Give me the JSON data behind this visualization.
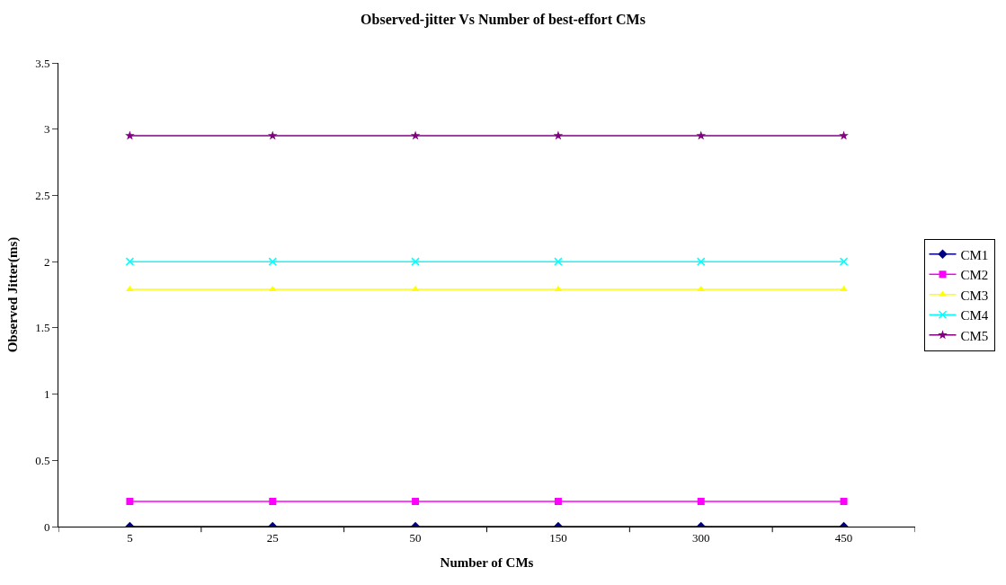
{
  "chart_data": {
    "type": "line",
    "title": "Observed-jitter Vs Number of best-effort CMs",
    "xlabel": "Number of CMs",
    "ylabel": "Observed Jitter(ms)",
    "categories": [
      "5",
      "25",
      "50",
      "150",
      "300",
      "450"
    ],
    "series": [
      {
        "name": "CM1",
        "color": "#000080",
        "marker": "diamond",
        "values": [
          0,
          0,
          0,
          0,
          0,
          0
        ]
      },
      {
        "name": "CM2",
        "color": "#ff00ff",
        "marker": "square",
        "values": [
          0.19,
          0.19,
          0.19,
          0.19,
          0.19,
          0.19
        ]
      },
      {
        "name": "CM3",
        "color": "#ffff00",
        "marker": "triangle",
        "values": [
          1.79,
          1.79,
          1.79,
          1.79,
          1.79,
          1.79
        ]
      },
      {
        "name": "CM4",
        "color": "#00ffff",
        "marker": "cross",
        "values": [
          2.0,
          2.0,
          2.0,
          2.0,
          2.0,
          2.0
        ]
      },
      {
        "name": "CM5",
        "color": "#800080",
        "marker": "star",
        "values": [
          2.95,
          2.95,
          2.95,
          2.95,
          2.95,
          2.95
        ]
      }
    ],
    "ylim": [
      0,
      3.5
    ],
    "yticks": [
      0,
      0.5,
      1,
      1.5,
      2,
      2.5,
      3,
      3.5
    ],
    "legend": "right",
    "line_style": "solid"
  }
}
